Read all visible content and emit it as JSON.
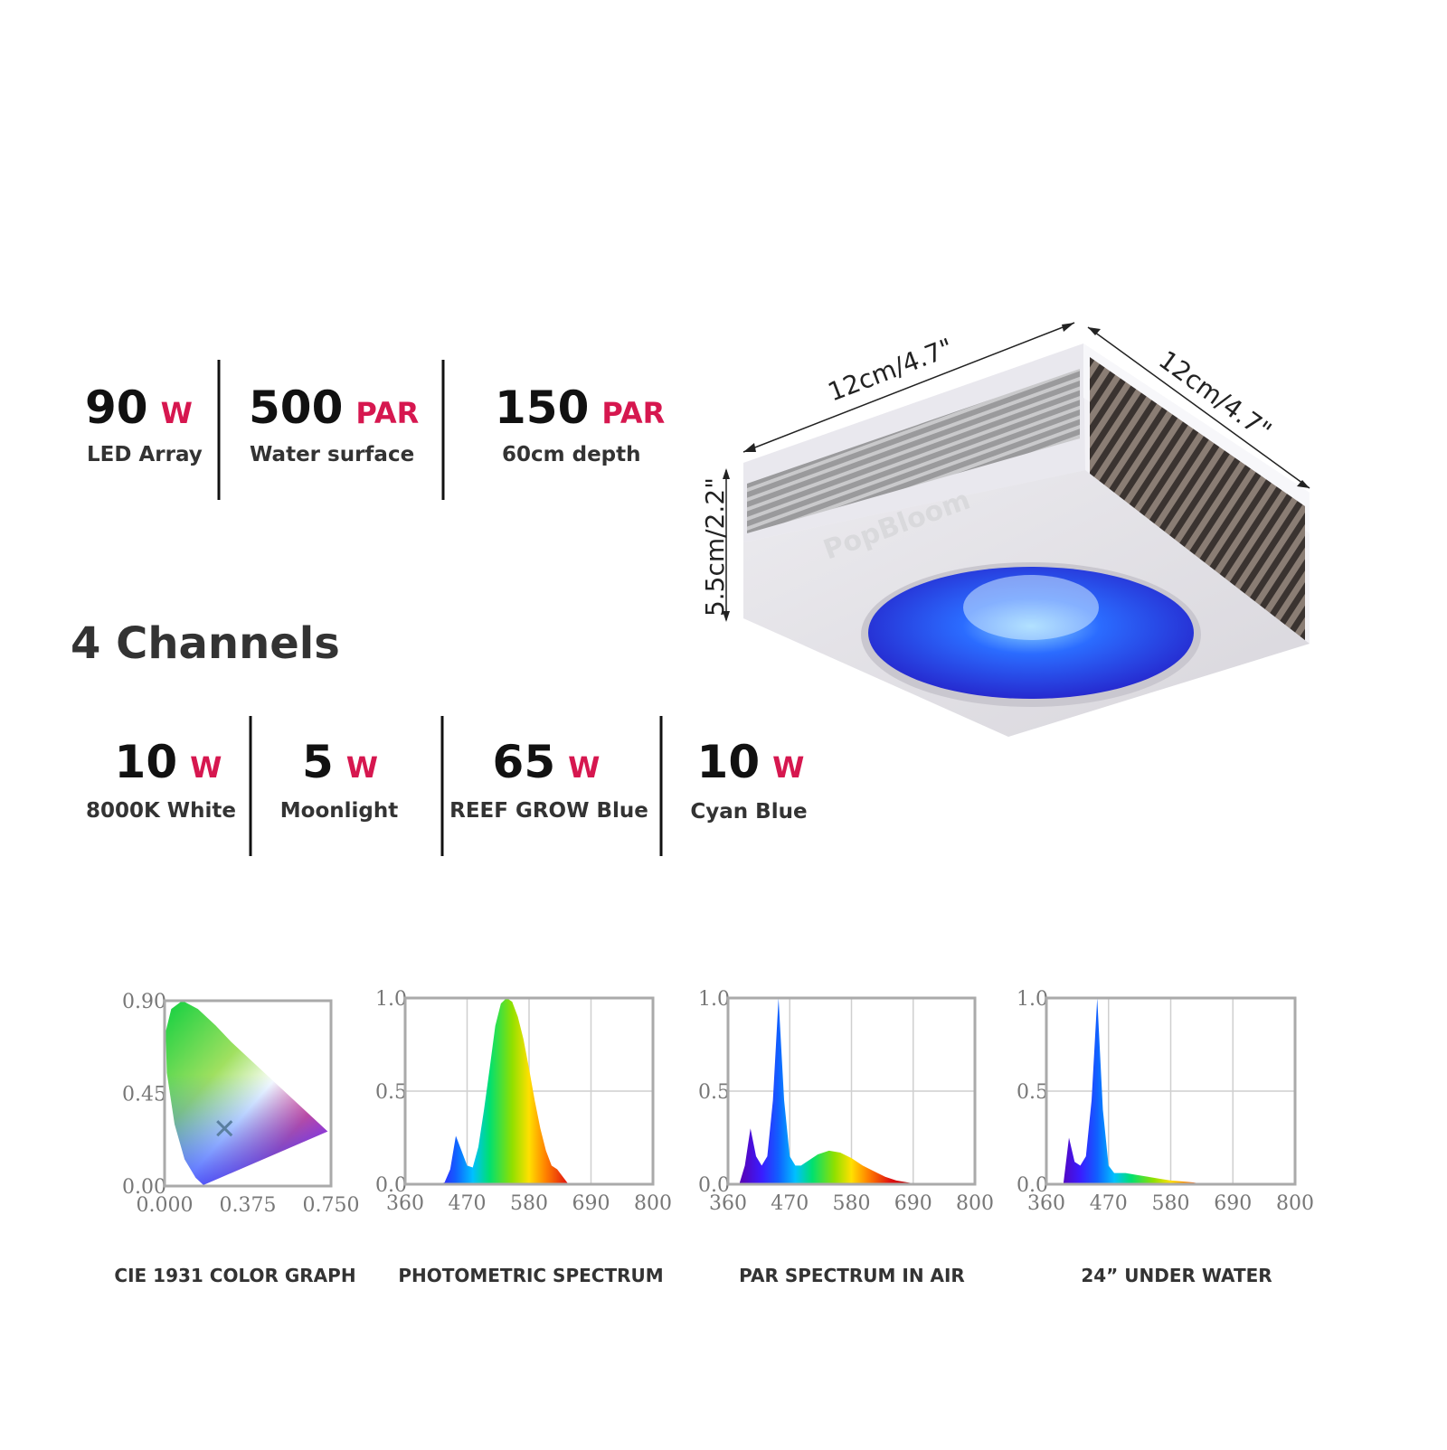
{
  "specs": [
    {
      "value": "90",
      "unit": "W",
      "label": "LED Array"
    },
    {
      "value": "500",
      "unit": "PAR",
      "label": "Water surface"
    },
    {
      "value": "150",
      "unit": "PAR",
      "label": "60cm depth"
    }
  ],
  "channels_title": "4 Channels",
  "channels": [
    {
      "value": "10",
      "unit": "W",
      "label": "8000K White"
    },
    {
      "value": "5",
      "unit": "W",
      "label": "Moonlight"
    },
    {
      "value": "65",
      "unit": "W",
      "label": "REEF GROW Blue"
    },
    {
      "value": "10",
      "unit": "W",
      "label": "Cyan Blue"
    }
  ],
  "product": {
    "brand": "PopBloom",
    "width": "12cm/4.7\"",
    "depth": "12cm/4.7\"",
    "height": "5.5cm/2.2\""
  },
  "chart_data": [
    {
      "type": "cie",
      "title": "CIE 1931 COLOR GRAPH",
      "x": [
        0.27
      ],
      "values": [
        0.28
      ],
      "xlim": [
        0,
        0.75
      ],
      "ylim": [
        0,
        0.9
      ],
      "xticks": [
        {
          "value": 0,
          "label": "0.000"
        },
        {
          "value": 0.375,
          "label": "0.375"
        },
        {
          "value": 0.75,
          "label": "0.750"
        }
      ],
      "yticks": [
        {
          "value": 0,
          "label": "0.00"
        },
        {
          "value": 0.45,
          "label": "0.45"
        },
        {
          "value": 0.9,
          "label": "0.90"
        }
      ],
      "grid": false
    },
    {
      "type": "spectrum",
      "title": "PHOTOMETRIC SPECTRUM",
      "x": [
        400,
        420,
        430,
        440,
        450,
        460,
        470,
        480,
        490,
        500,
        510,
        520,
        530,
        540,
        550,
        560,
        570,
        580,
        590,
        600,
        610,
        620,
        630,
        640,
        650,
        660
      ],
      "values": [
        0,
        0,
        0.01,
        0.08,
        0.26,
        0.18,
        0.1,
        0.09,
        0.2,
        0.4,
        0.62,
        0.85,
        0.97,
        1.0,
        0.98,
        0.9,
        0.78,
        0.62,
        0.45,
        0.3,
        0.18,
        0.1,
        0.08,
        0.04,
        0,
        0
      ],
      "xlim": [
        360,
        800
      ],
      "ylim": [
        0,
        1
      ],
      "xticks": [
        360,
        470,
        580,
        690,
        800
      ],
      "yticks": [
        {
          "value": 0,
          "label": "0.0"
        },
        {
          "value": 0.5,
          "label": "0.5"
        },
        {
          "value": 1,
          "label": "1.0"
        }
      ],
      "grid": true
    },
    {
      "type": "spectrum",
      "title": "PAR SPECTRUM IN AIR",
      "x": [
        380,
        390,
        400,
        410,
        420,
        430,
        440,
        450,
        460,
        470,
        480,
        490,
        500,
        520,
        540,
        560,
        580,
        600,
        620,
        640,
        660,
        680,
        700
      ],
      "values": [
        0,
        0.1,
        0.3,
        0.15,
        0.1,
        0.15,
        0.45,
        1.0,
        0.45,
        0.15,
        0.1,
        0.1,
        0.12,
        0.16,
        0.18,
        0.17,
        0.14,
        0.1,
        0.07,
        0.04,
        0.02,
        0.01,
        0
      ],
      "xlim": [
        360,
        800
      ],
      "ylim": [
        0,
        1
      ],
      "xticks": [
        360,
        470,
        580,
        690,
        800
      ],
      "yticks": [
        {
          "value": 0,
          "label": "0.0"
        },
        {
          "value": 0.5,
          "label": "0.5"
        },
        {
          "value": 1,
          "label": "1.0"
        }
      ],
      "grid": true
    },
    {
      "type": "spectrum",
      "title": "24”  UNDER WATER",
      "x": [
        390,
        400,
        410,
        420,
        430,
        440,
        450,
        460,
        470,
        480,
        500,
        520,
        540,
        560,
        580,
        600,
        620,
        640
      ],
      "values": [
        0,
        0.25,
        0.12,
        0.1,
        0.15,
        0.45,
        1.0,
        0.4,
        0.1,
        0.06,
        0.06,
        0.05,
        0.04,
        0.03,
        0.02,
        0.015,
        0.01,
        0
      ],
      "xlim": [
        360,
        800
      ],
      "ylim": [
        0,
        1
      ],
      "xticks": [
        360,
        470,
        580,
        690,
        800
      ],
      "yticks": [
        {
          "value": 0,
          "label": "0.0"
        },
        {
          "value": 0.5,
          "label": "0.5"
        },
        {
          "value": 1,
          "label": "1.0"
        }
      ],
      "grid": true
    }
  ]
}
